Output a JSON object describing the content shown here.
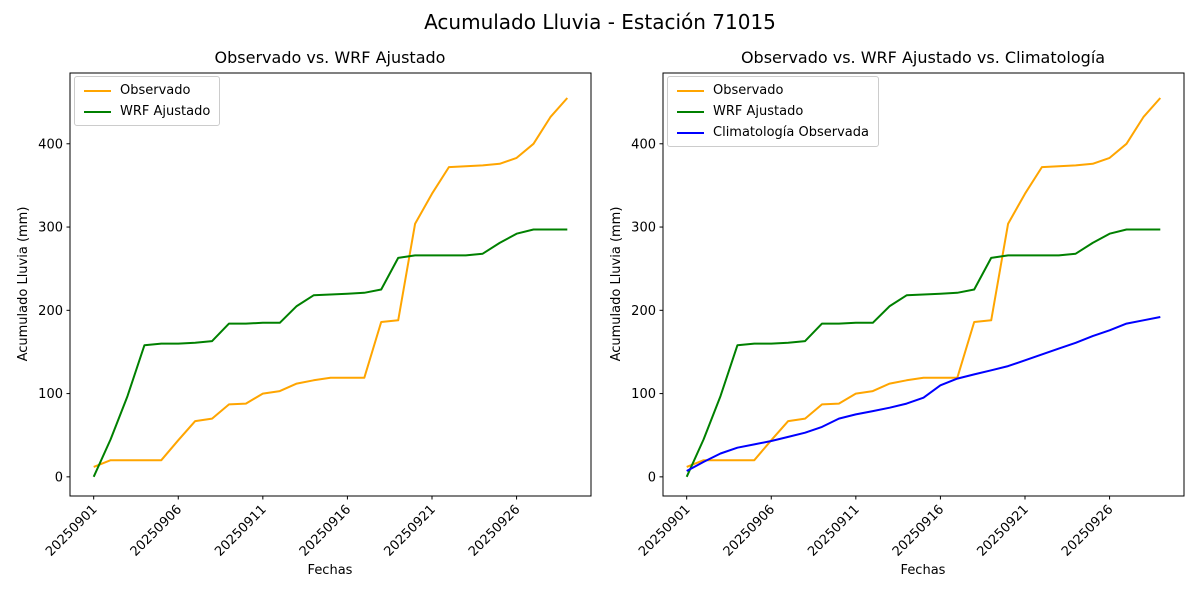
{
  "figure": {
    "title": "Acumulado Lluvia - Estación 71015",
    "background": "#ffffff"
  },
  "chart_data": [
    {
      "type": "line",
      "title": "Observado vs. WRF Ajustado",
      "xlabel": "Fechas",
      "ylabel": "Acumulado Lluvia (mm)",
      "x": [
        "20250901",
        "20250902",
        "20250903",
        "20250904",
        "20250905",
        "20250906",
        "20250907",
        "20250908",
        "20250909",
        "20250910",
        "20250911",
        "20250912",
        "20250913",
        "20250914",
        "20250915",
        "20250916",
        "20250917",
        "20250918",
        "20250919",
        "20250920",
        "20250921",
        "20250922",
        "20250923",
        "20250924",
        "20250925",
        "20250926",
        "20250927",
        "20250928",
        "20250929"
      ],
      "x_tick_labels": [
        "20250901",
        "20250906",
        "20250911",
        "20250916",
        "20250921",
        "20250926"
      ],
      "x_tick_rotation": 45,
      "y_ticks": [
        0,
        100,
        200,
        300,
        400
      ],
      "ylim": [
        -23,
        485
      ],
      "grid": false,
      "legend_position": "upper left",
      "series": [
        {
          "name": "Observado",
          "color": "#FFA500",
          "values": [
            12,
            20,
            20,
            20,
            20,
            44,
            67,
            70,
            87,
            88,
            100,
            103,
            112,
            116,
            119,
            119,
            119,
            186,
            188,
            304,
            340,
            372,
            373,
            374,
            376,
            383,
            400,
            432,
            455
          ]
        },
        {
          "name": "WRF Ajustado",
          "color": "#008000",
          "values": [
            0,
            45,
            97,
            158,
            160,
            160,
            161,
            163,
            184,
            184,
            185,
            185,
            205,
            218,
            219,
            220,
            221,
            225,
            263,
            266,
            266,
            266,
            266,
            268,
            281,
            292,
            297,
            297,
            297
          ]
        }
      ]
    },
    {
      "type": "line",
      "title": "Observado vs. WRF Ajustado vs. Climatología",
      "xlabel": "Fechas",
      "ylabel": "Acumulado Lluvia (mm)",
      "x": [
        "20250901",
        "20250902",
        "20250903",
        "20250904",
        "20250905",
        "20250906",
        "20250907",
        "20250908",
        "20250909",
        "20250910",
        "20250911",
        "20250912",
        "20250913",
        "20250914",
        "20250915",
        "20250916",
        "20250917",
        "20250918",
        "20250919",
        "20250920",
        "20250921",
        "20250922",
        "20250923",
        "20250924",
        "20250925",
        "20250926",
        "20250927",
        "20250928",
        "20250929"
      ],
      "x_tick_labels": [
        "20250901",
        "20250906",
        "20250911",
        "20250916",
        "20250921",
        "20250926"
      ],
      "x_tick_rotation": 45,
      "y_ticks": [
        0,
        100,
        200,
        300,
        400
      ],
      "ylim": [
        -23,
        485
      ],
      "grid": false,
      "legend_position": "upper left",
      "series": [
        {
          "name": "Observado",
          "color": "#FFA500",
          "values": [
            12,
            20,
            20,
            20,
            20,
            44,
            67,
            70,
            87,
            88,
            100,
            103,
            112,
            116,
            119,
            119,
            119,
            186,
            188,
            304,
            340,
            372,
            373,
            374,
            376,
            383,
            400,
            432,
            455
          ]
        },
        {
          "name": "WRF Ajustado",
          "color": "#008000",
          "values": [
            0,
            45,
            97,
            158,
            160,
            160,
            161,
            163,
            184,
            184,
            185,
            185,
            205,
            218,
            219,
            220,
            221,
            225,
            263,
            266,
            266,
            266,
            266,
            268,
            281,
            292,
            297,
            297,
            297
          ]
        },
        {
          "name": "Climatología Observada",
          "color": "#0000FF",
          "values": [
            7,
            18,
            28,
            35,
            39,
            43,
            48,
            53,
            60,
            70,
            75,
            79,
            83,
            88,
            95,
            110,
            118,
            123,
            128,
            133,
            140,
            147,
            154,
            161,
            169,
            176,
            184,
            188,
            192
          ]
        }
      ]
    }
  ]
}
